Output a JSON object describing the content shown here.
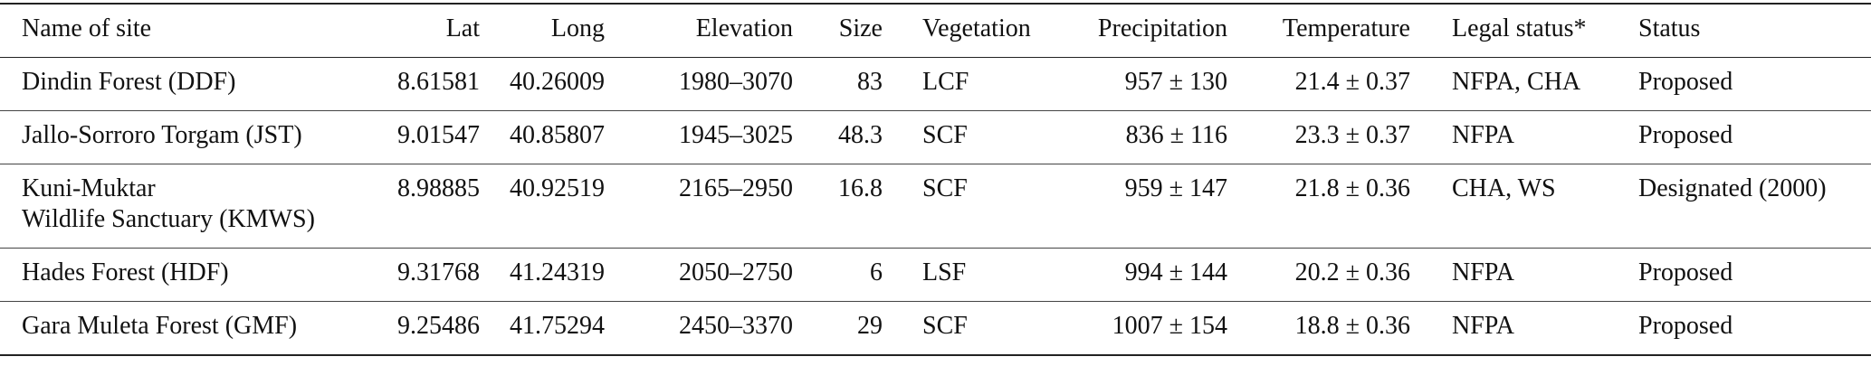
{
  "table": {
    "header": [
      "Name of site",
      "Lat",
      "Long",
      "Elevation",
      "Size",
      "Vegetation",
      "Precipitation",
      "Temperature",
      "Legal status*",
      "Status"
    ],
    "rows": [
      [
        "Dindin Forest (DDF)",
        "8.61581",
        "40.26009",
        "1980–3070",
        "83",
        "LCF",
        "957 ± 130",
        "21.4 ± 0.37",
        "NFPA, CHA",
        "Proposed"
      ],
      [
        "Jallo-Sorroro Torgam (JST)",
        "9.01547",
        "40.85807",
        "1945–3025",
        "48.3",
        "SCF",
        "836 ± 116",
        "23.3 ± 0.37",
        "NFPA",
        "Proposed"
      ],
      [
        "Kuni-Muktar\nWildlife Sanctuary (KMWS)",
        "8.98885",
        "40.92519",
        "2165–2950",
        "16.8",
        "SCF",
        "959 ± 147",
        "21.8 ± 0.36",
        "CHA, WS",
        "Designated (2000)"
      ],
      [
        "Hades Forest (HDF)",
        "9.31768",
        "41.24319",
        "2050–2750",
        "6",
        "LSF",
        "994 ± 144",
        "20.2 ± 0.36",
        "NFPA",
        "Proposed"
      ],
      [
        "Gara Muleta Forest (GMF)",
        "9.25486",
        "41.75294",
        "2450–3370",
        "29",
        "SCF",
        "1007 ± 154",
        "18.8 ± 0.36",
        "NFPA",
        "Proposed"
      ]
    ]
  }
}
